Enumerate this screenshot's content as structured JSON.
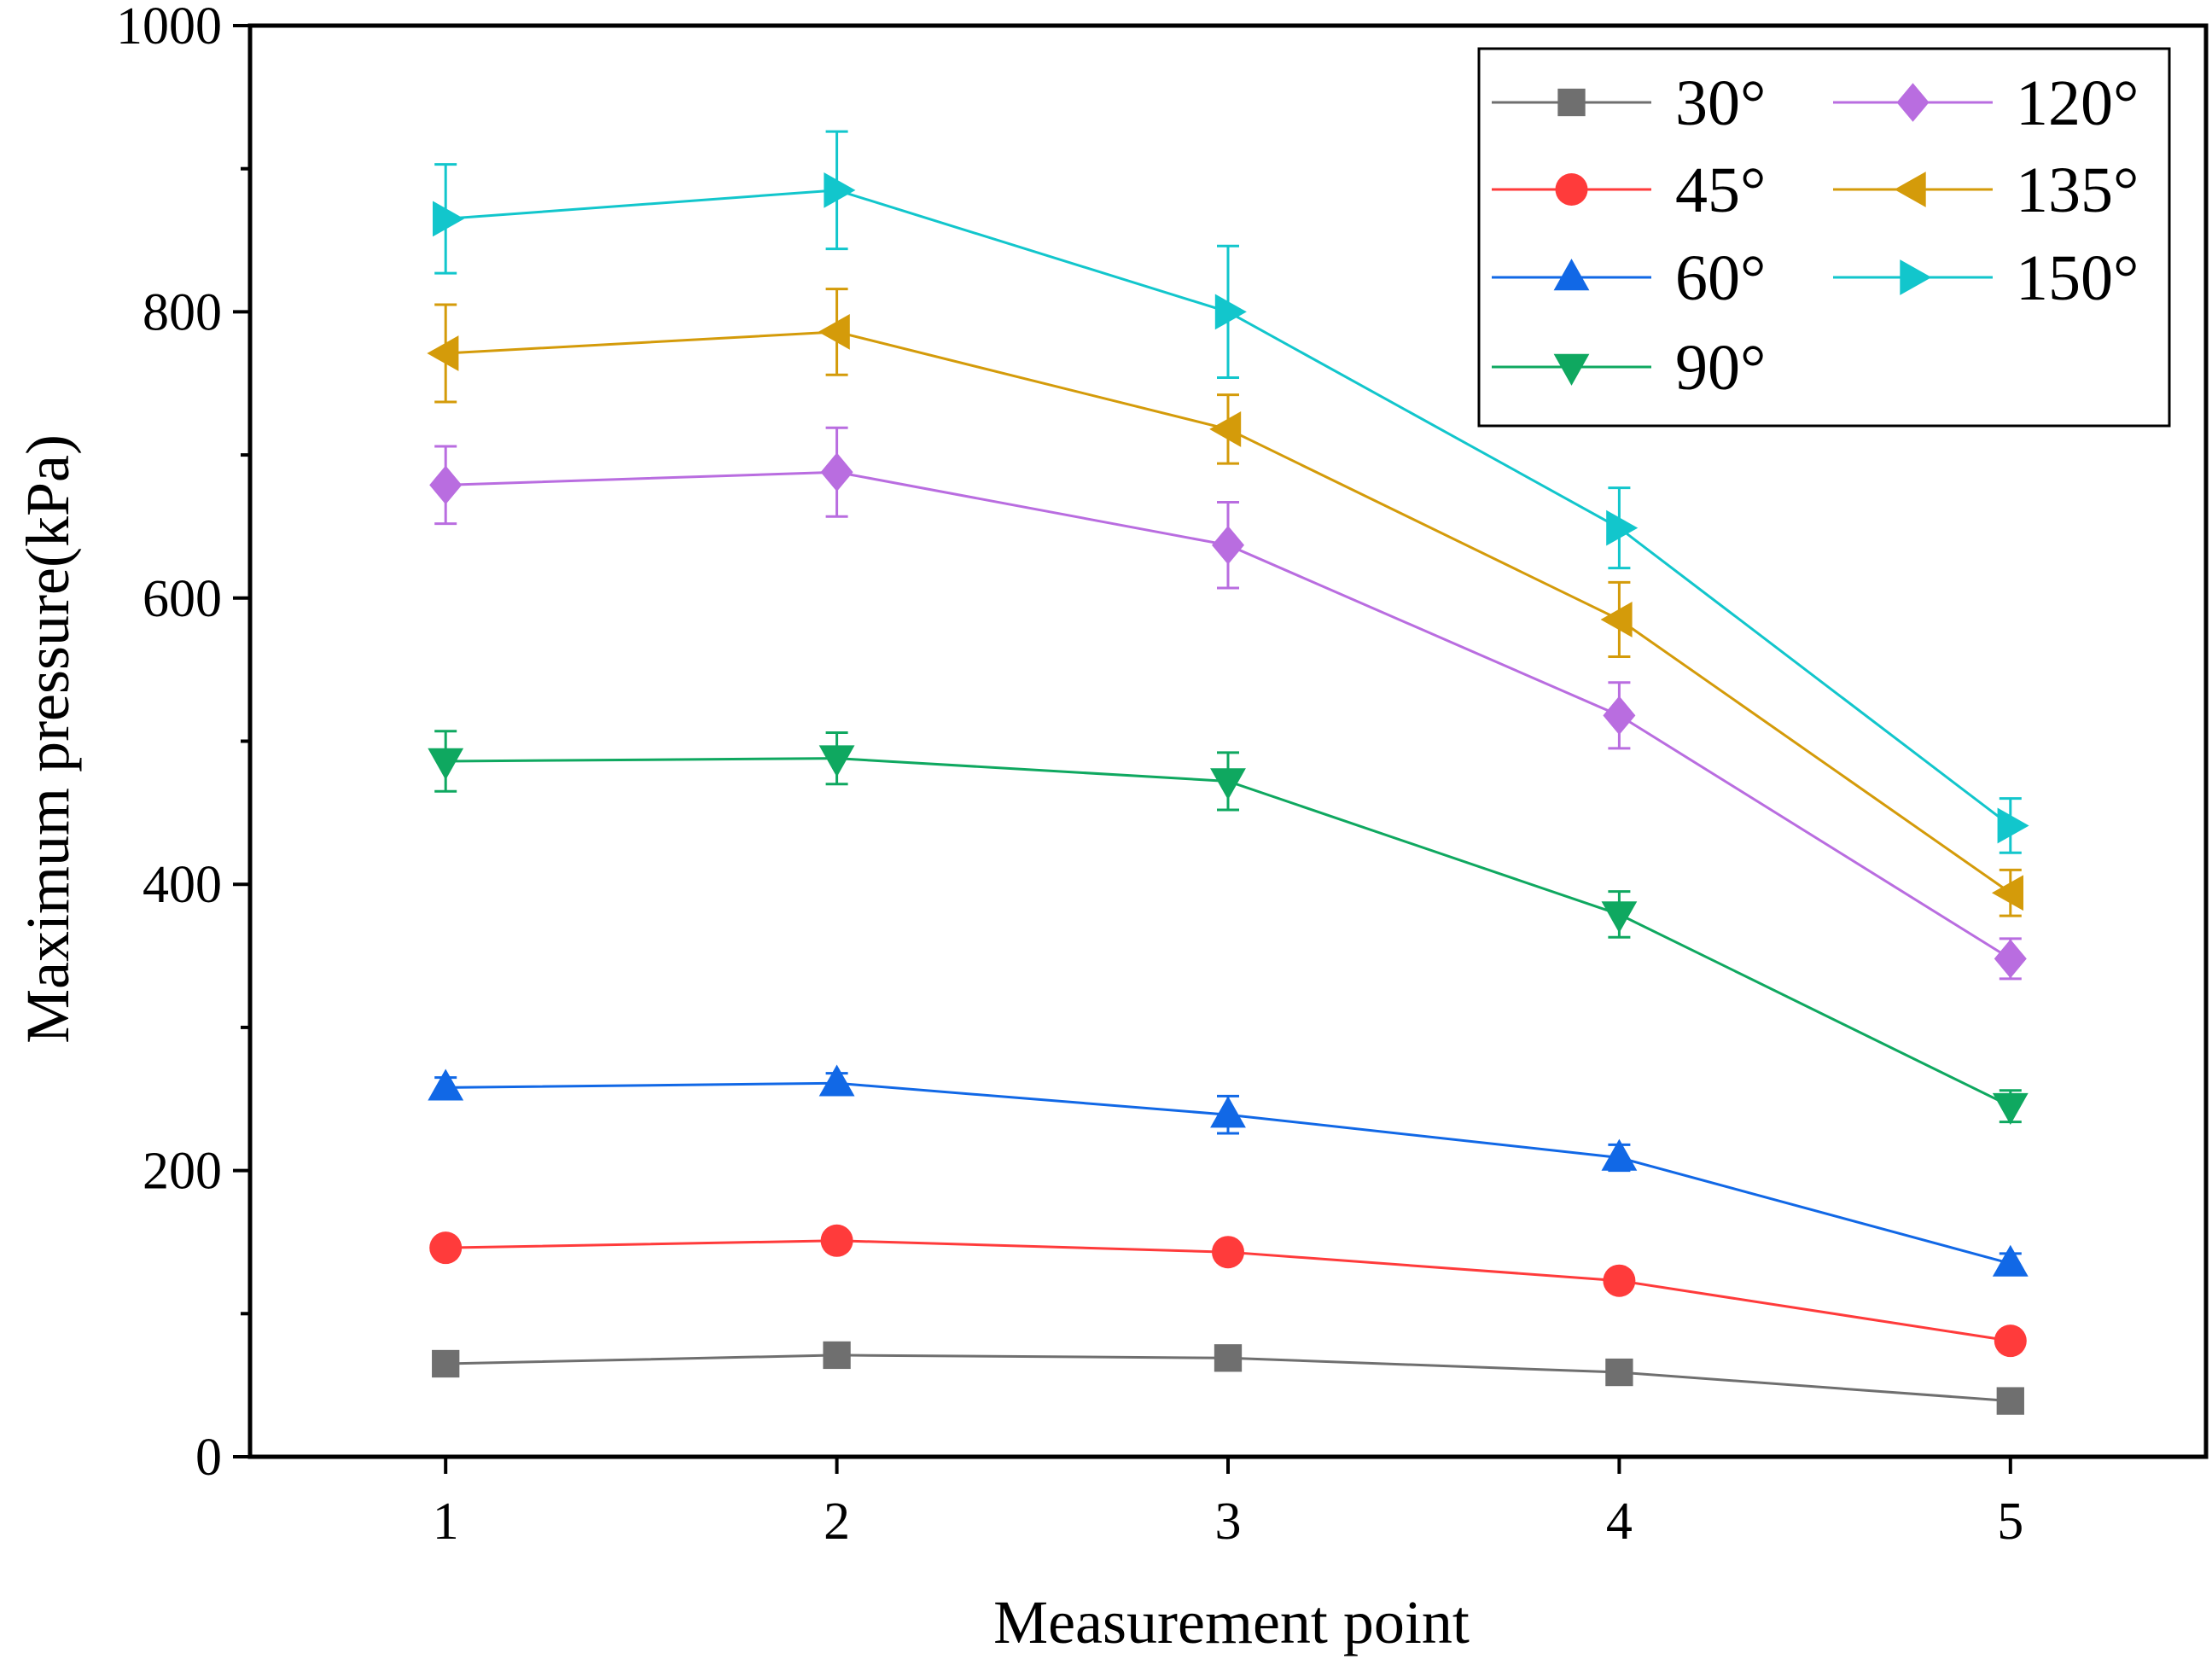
{
  "chart_data": {
    "type": "line",
    "title": "",
    "xlabel": "Measurement point",
    "ylabel": "Maximum pressure(kPa)",
    "xlim": [
      0.5,
      5.5
    ],
    "ylim": [
      0,
      1000
    ],
    "x_ticks": [
      1,
      2,
      3,
      4,
      5
    ],
    "x_tick_labels": [
      "1",
      "2",
      "3",
      "4",
      "5"
    ],
    "y_ticks": [
      0,
      200,
      400,
      600,
      800,
      1000
    ],
    "y_tick_labels": [
      "0",
      "200",
      "400",
      "600",
      "800",
      "1000"
    ],
    "y_minor_ticks": [
      100,
      300,
      500,
      700,
      900
    ],
    "grid": false,
    "legend_position": "top-right",
    "x": [
      1,
      2,
      3,
      4,
      5
    ],
    "series": [
      {
        "name": "30°",
        "color": "#6f6f6f",
        "marker": "square",
        "values": [
          65,
          71,
          69,
          59,
          39
        ],
        "errors": [
          0,
          0,
          0,
          0,
          0
        ]
      },
      {
        "name": "45°",
        "color": "#ff3b3b",
        "marker": "circle",
        "values": [
          146,
          151,
          143,
          123,
          81
        ],
        "errors": [
          0,
          0,
          0,
          0,
          0
        ]
      },
      {
        "name": "60°",
        "color": "#1168e6",
        "marker": "triangle-up",
        "values": [
          258,
          261,
          239,
          209,
          135
        ],
        "errors": [
          7,
          7,
          13,
          9,
          7
        ]
      },
      {
        "name": "90°",
        "color": "#0fa860",
        "marker": "triangle-down",
        "values": [
          486,
          488,
          472,
          379,
          245
        ],
        "errors": [
          21,
          18,
          20,
          16,
          11
        ]
      },
      {
        "name": "120°",
        "color": "#b96de0",
        "marker": "diamond",
        "values": [
          679,
          688,
          637,
          518,
          348
        ],
        "errors": [
          27,
          31,
          30,
          23,
          14
        ]
      },
      {
        "name": "135°",
        "color": "#d49b0a",
        "marker": "triangle-left",
        "values": [
          771,
          786,
          718,
          585,
          394
        ],
        "errors": [
          34,
          30,
          24,
          26,
          16
        ]
      },
      {
        "name": "150°",
        "color": "#12c6cc",
        "marker": "triangle-right",
        "values": [
          865,
          885,
          800,
          649,
          441
        ],
        "errors": [
          38,
          41,
          46,
          28,
          19
        ]
      }
    ]
  }
}
